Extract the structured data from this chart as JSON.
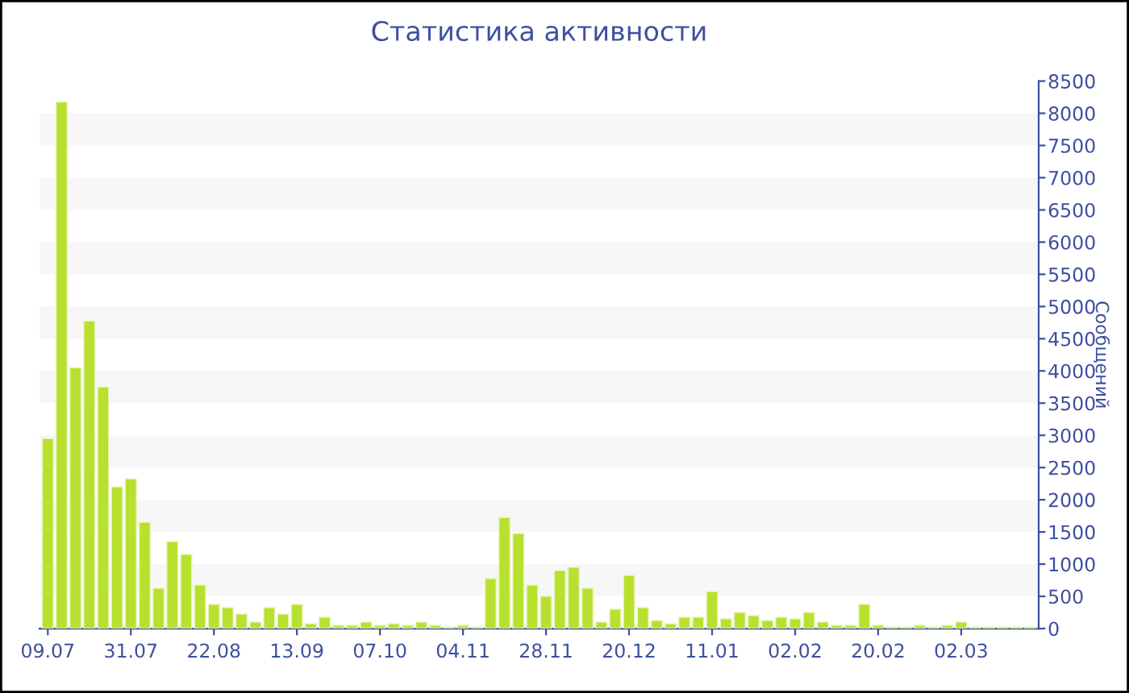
{
  "chart_data": {
    "type": "bar",
    "title": "Статистика активности",
    "ylabel": "Сообщений",
    "categories": [
      "09.07",
      null,
      null,
      null,
      null,
      null,
      "31.07",
      null,
      null,
      null,
      null,
      null,
      "22.08",
      null,
      null,
      null,
      null,
      null,
      "13.09",
      null,
      null,
      null,
      null,
      null,
      "07.10",
      null,
      null,
      null,
      null,
      null,
      "04.11",
      null,
      null,
      null,
      null,
      null,
      "28.11",
      null,
      null,
      null,
      null,
      null,
      "20.12",
      null,
      null,
      null,
      null,
      null,
      "11.01",
      null,
      null,
      null,
      null,
      null,
      "02.02",
      null,
      null,
      null,
      null,
      null,
      "20.02",
      null,
      null,
      null,
      null,
      null,
      "02.03",
      null,
      null,
      null,
      null,
      null
    ],
    "values": [
      2950,
      8175,
      4050,
      4775,
      3750,
      2200,
      2325,
      1650,
      625,
      1350,
      1150,
      675,
      375,
      325,
      225,
      100,
      325,
      225,
      375,
      75,
      175,
      50,
      50,
      100,
      50,
      75,
      50,
      100,
      50,
      25,
      50,
      25,
      775,
      1725,
      1475,
      675,
      500,
      900,
      950,
      625,
      100,
      300,
      825,
      325,
      125,
      75,
      175,
      175,
      575,
      150,
      250,
      200,
      125,
      175,
      150,
      250,
      100,
      50,
      50,
      375,
      50,
      25,
      25,
      50,
      25,
      50,
      100,
      25,
      25,
      25,
      25,
      25
    ],
    "color": "#b8e02e",
    "ylim": [
      0,
      8500
    ],
    "yticks": [
      0,
      500,
      1000,
      1500,
      2000,
      2500,
      3000,
      3500,
      4000,
      4500,
      5000,
      5500,
      6000,
      6500,
      7000,
      7500,
      8000,
      8500
    ],
    "bands": [
      {
        "axis": "y",
        "from": 500,
        "to": 1000,
        "color": "#f7f7f7"
      },
      {
        "axis": "y",
        "from": 1500,
        "to": 2000,
        "color": "#f7f7f7"
      },
      {
        "axis": "y",
        "from": 2500,
        "to": 3000,
        "color": "#f7f7f7"
      },
      {
        "axis": "y",
        "from": 3500,
        "to": 4000,
        "color": "#f7f7f7"
      },
      {
        "axis": "y",
        "from": 4500,
        "to": 5000,
        "color": "#f7f7f7"
      },
      {
        "axis": "y",
        "from": 5500,
        "to": 6000,
        "color": "#f7f7f7"
      },
      {
        "axis": "y",
        "from": 6500,
        "to": 7000,
        "color": "#f7f7f7"
      },
      {
        "axis": "y",
        "from": 7500,
        "to": 8000,
        "color": "#f7f7f7"
      }
    ],
    "grid": false,
    "legend": false
  }
}
